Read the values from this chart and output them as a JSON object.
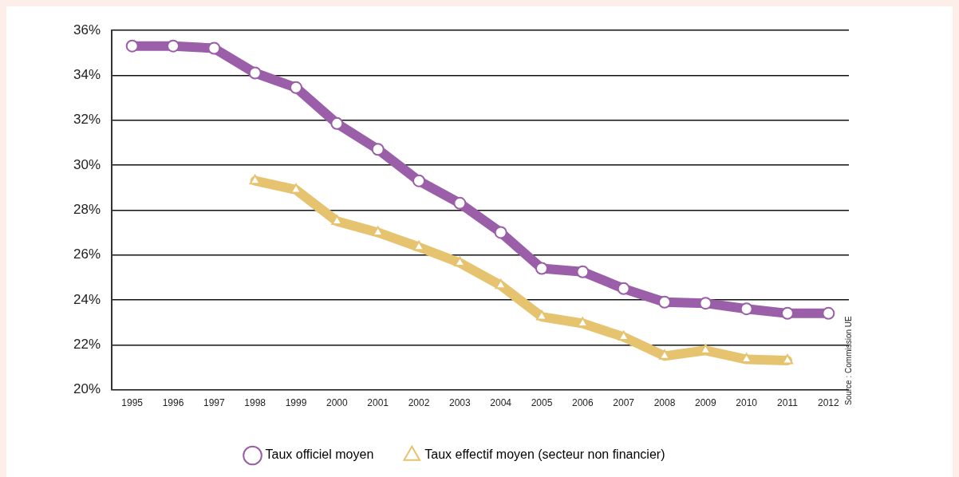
{
  "chart_data": {
    "type": "line",
    "categories": [
      "1995",
      "1996",
      "1997",
      "1998",
      "1999",
      "2000",
      "2001",
      "2002",
      "2003",
      "2004",
      "2005",
      "2006",
      "2007",
      "2008",
      "2009",
      "2010",
      "2011",
      "2012"
    ],
    "series": [
      {
        "name": "Taux officiel moyen",
        "color": "#9b5ea8",
        "marker": "circle",
        "values": [
          35.3,
          35.3,
          35.2,
          34.1,
          33.45,
          31.85,
          30.7,
          29.3,
          28.3,
          27.0,
          25.4,
          25.25,
          24.5,
          23.9,
          23.85,
          23.6,
          23.4,
          23.4
        ]
      },
      {
        "name": "Taux effectif moyen (secteur non financier)",
        "color": "#e6c36f",
        "marker": "triangle",
        "values": [
          null,
          null,
          null,
          29.3,
          28.9,
          27.5,
          27.0,
          26.35,
          25.65,
          24.65,
          23.25,
          22.95,
          22.35,
          21.5,
          21.75,
          21.35,
          21.3,
          null
        ]
      }
    ],
    "ylim": [
      20,
      36
    ],
    "yticks": [
      {
        "value": 20,
        "label": "20%"
      },
      {
        "value": 22,
        "label": "22%"
      },
      {
        "value": 24,
        "label": "24%"
      },
      {
        "value": 26,
        "label": "26%"
      },
      {
        "value": 28,
        "label": "28%"
      },
      {
        "value": 30,
        "label": "30%"
      },
      {
        "value": 32,
        "label": "32%"
      },
      {
        "value": 34,
        "label": "34%"
      },
      {
        "value": 36,
        "label": "36%"
      }
    ],
    "grid": "y",
    "legend": "bottom",
    "line_style": "solid",
    "annotations": [
      "Source : Commission UE"
    ]
  }
}
